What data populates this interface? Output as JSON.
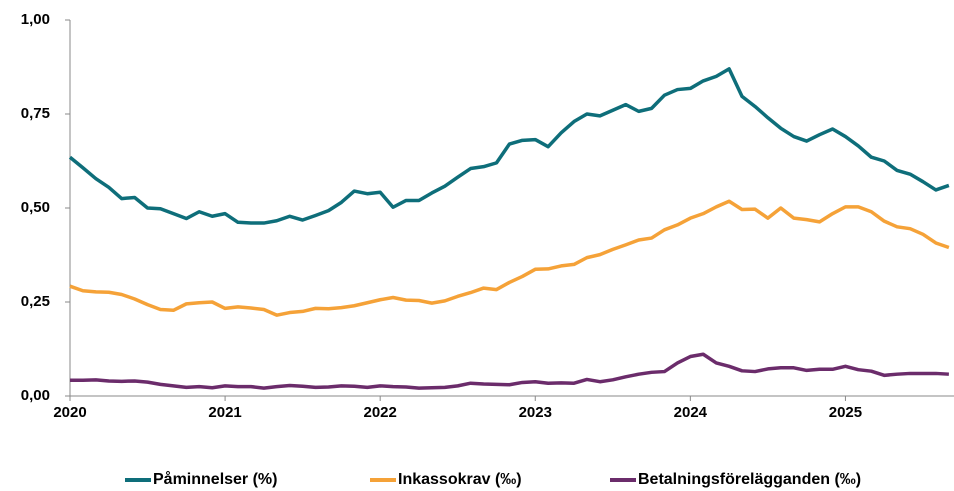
{
  "chart_data": {
    "type": "line",
    "x": [
      2020,
      2020.083,
      2020.167,
      2020.25,
      2020.333,
      2020.417,
      2020.5,
      2020.583,
      2020.667,
      2020.75,
      2020.833,
      2020.917,
      2021,
      2021.083,
      2021.167,
      2021.25,
      2021.333,
      2021.417,
      2021.5,
      2021.583,
      2021.667,
      2021.75,
      2021.833,
      2021.917,
      2022,
      2022.083,
      2022.167,
      2022.25,
      2022.333,
      2022.417,
      2022.5,
      2022.583,
      2022.667,
      2022.75,
      2022.833,
      2022.917,
      2023,
      2023.083,
      2023.167,
      2023.25,
      2023.333,
      2023.417,
      2023.5,
      2023.583,
      2023.667,
      2023.75,
      2023.833,
      2023.917,
      2024,
      2024.083,
      2024.167,
      2024.25,
      2024.333,
      2024.417,
      2024.5,
      2024.583,
      2024.667,
      2024.75,
      2024.833,
      2024.917,
      2025,
      2025.083,
      2025.167,
      2025.25,
      2025.333,
      2025.417,
      2025.5,
      2025.583,
      2025.667
    ],
    "series": [
      {
        "name": "Påminnelser (%)",
        "color": "#0e6e7a",
        "values": [
          0.635,
          0.607,
          0.578,
          0.555,
          0.525,
          0.528,
          0.5,
          0.498,
          0.485,
          0.472,
          0.49,
          0.478,
          0.485,
          0.462,
          0.46,
          0.46,
          0.466,
          0.478,
          0.468,
          0.48,
          0.493,
          0.515,
          0.545,
          0.538,
          0.542,
          0.502,
          0.52,
          0.52,
          0.54,
          0.558,
          0.582,
          0.605,
          0.61,
          0.62,
          0.67,
          0.68,
          0.682,
          0.663,
          0.7,
          0.73,
          0.75,
          0.745,
          0.76,
          0.775,
          0.757,
          0.765,
          0.8,
          0.815,
          0.818,
          0.838,
          0.85,
          0.87,
          0.797,
          0.77,
          0.74,
          0.712,
          0.69,
          0.678,
          0.695,
          0.71,
          0.69,
          0.665,
          0.635,
          0.625,
          0.6,
          0.59,
          0.57,
          0.548,
          0.56
        ]
      },
      {
        "name": "Inkassokrav (‰)",
        "color": "#f5a238",
        "values": [
          0.292,
          0.28,
          0.277,
          0.276,
          0.27,
          0.258,
          0.243,
          0.23,
          0.228,
          0.245,
          0.248,
          0.25,
          0.233,
          0.237,
          0.234,
          0.23,
          0.215,
          0.222,
          0.225,
          0.233,
          0.232,
          0.235,
          0.24,
          0.248,
          0.256,
          0.262,
          0.255,
          0.254,
          0.247,
          0.253,
          0.265,
          0.275,
          0.287,
          0.283,
          0.302,
          0.318,
          0.337,
          0.338,
          0.346,
          0.35,
          0.368,
          0.376,
          0.39,
          0.402,
          0.415,
          0.42,
          0.442,
          0.455,
          0.473,
          0.485,
          0.503,
          0.518,
          0.496,
          0.497,
          0.473,
          0.5,
          0.473,
          0.469,
          0.463,
          0.485,
          0.503,
          0.503,
          0.49,
          0.465,
          0.45,
          0.445,
          0.43,
          0.407,
          0.395
        ]
      },
      {
        "name": "Betalningsförelägganden (‰)",
        "color": "#6b2c6b",
        "values": [
          0.042,
          0.042,
          0.043,
          0.04,
          0.039,
          0.04,
          0.037,
          0.031,
          0.027,
          0.023,
          0.025,
          0.022,
          0.027,
          0.025,
          0.025,
          0.021,
          0.025,
          0.028,
          0.026,
          0.023,
          0.024,
          0.027,
          0.026,
          0.023,
          0.027,
          0.025,
          0.024,
          0.021,
          0.022,
          0.023,
          0.027,
          0.034,
          0.032,
          0.031,
          0.03,
          0.036,
          0.038,
          0.034,
          0.035,
          0.034,
          0.044,
          0.038,
          0.043,
          0.051,
          0.058,
          0.063,
          0.065,
          0.088,
          0.105,
          0.111,
          0.088,
          0.079,
          0.067,
          0.065,
          0.072,
          0.075,
          0.075,
          0.068,
          0.071,
          0.071,
          0.079,
          0.07,
          0.066,
          0.055,
          0.058,
          0.06,
          0.06,
          0.06,
          0.058
        ]
      }
    ],
    "xlim": [
      2020,
      2025.7
    ],
    "xticks": [
      2020,
      2021,
      2022,
      2023,
      2024,
      2025
    ],
    "ylim": [
      0,
      1
    ],
    "yticks": [
      {
        "value": 0,
        "label": "0,00"
      },
      {
        "value": 0.25,
        "label": "0,25"
      },
      {
        "value": 0.5,
        "label": "0,50"
      },
      {
        "value": 0.75,
        "label": "0,75"
      },
      {
        "value": 1,
        "label": "1,00"
      }
    ],
    "grid": false,
    "legend": "bottom"
  }
}
